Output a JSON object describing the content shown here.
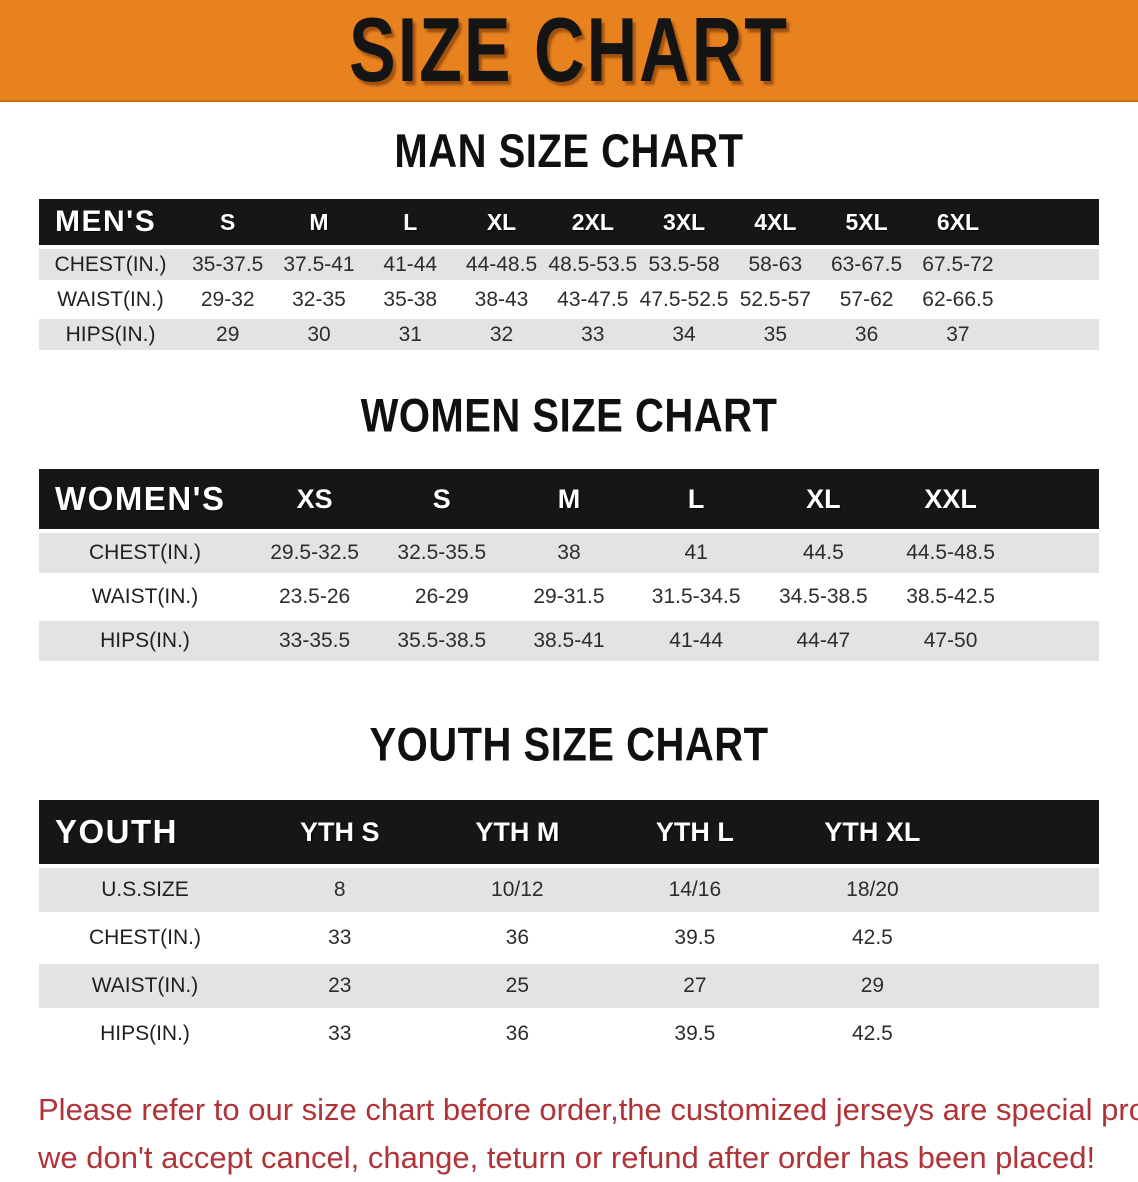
{
  "banner": {
    "title": "SIZE CHART",
    "bg_color": "#e8821e",
    "text_color": "#141414"
  },
  "sections": [
    {
      "heading": "MAN SIZE CHART",
      "table": {
        "header_label": "MEN'S",
        "columns": [
          "S",
          "M",
          "L",
          "XL",
          "2XL",
          "3XL",
          "4XL",
          "5XL",
          "6XL"
        ],
        "rows": [
          {
            "label": "CHEST(IN.)",
            "values": [
              "35-37.5",
              "37.5-41",
              "41-44",
              "44-48.5",
              "48.5-53.5",
              "53.5-58",
              "58-63",
              "63-67.5",
              "67.5-72"
            ]
          },
          {
            "label": "WAIST(IN.)",
            "values": [
              "29-32",
              "32-35",
              "35-38",
              "38-43",
              "43-47.5",
              "47.5-52.5",
              "52.5-57",
              "57-62",
              "62-66.5"
            ]
          },
          {
            "label": "HIPS(IN.)",
            "values": [
              "29",
              "30",
              "31",
              "32",
              "33",
              "34",
              "35",
              "36",
              "37"
            ]
          }
        ]
      }
    },
    {
      "heading": "WOMEN SIZE CHART",
      "table": {
        "header_label": "WOMEN'S",
        "columns": [
          "XS",
          "S",
          "M",
          "L",
          "XL",
          "XXL"
        ],
        "rows": [
          {
            "label": "CHEST(IN.)",
            "values": [
              "29.5-32.5",
              "32.5-35.5",
              "38",
              "41",
              "44.5",
              "44.5-48.5"
            ]
          },
          {
            "label": "WAIST(IN.)",
            "values": [
              "23.5-26",
              "26-29",
              "29-31.5",
              "31.5-34.5",
              "34.5-38.5",
              "38.5-42.5"
            ]
          },
          {
            "label": "HIPS(IN.)",
            "values": [
              "33-35.5",
              "35.5-38.5",
              "38.5-41",
              "41-44",
              "44-47",
              "47-50"
            ]
          }
        ]
      }
    },
    {
      "heading": "YOUTH SIZE CHART",
      "table": {
        "header_label": "YOUTH",
        "columns": [
          "YTH S",
          "YTH M",
          "YTH L",
          "YTH XL"
        ],
        "rows": [
          {
            "label": "U.S.SIZE",
            "values": [
              "8",
              "10/12",
              "14/16",
              "18/20"
            ]
          },
          {
            "label": "CHEST(IN.)",
            "values": [
              "33",
              "36",
              "39.5",
              "42.5"
            ]
          },
          {
            "label": "WAIST(IN.)",
            "values": [
              "23",
              "25",
              "27",
              "29"
            ]
          },
          {
            "label": "HIPS(IN.)",
            "values": [
              "33",
              "36",
              "39.5",
              "42.5"
            ]
          }
        ]
      }
    }
  ],
  "disclaimer": {
    "line1": "Please refer to our size chart before order,the customized jerseys are special products,",
    "line2": "we don't accept cancel, change, teturn or refund after order has been placed!",
    "color": "#b03338"
  }
}
